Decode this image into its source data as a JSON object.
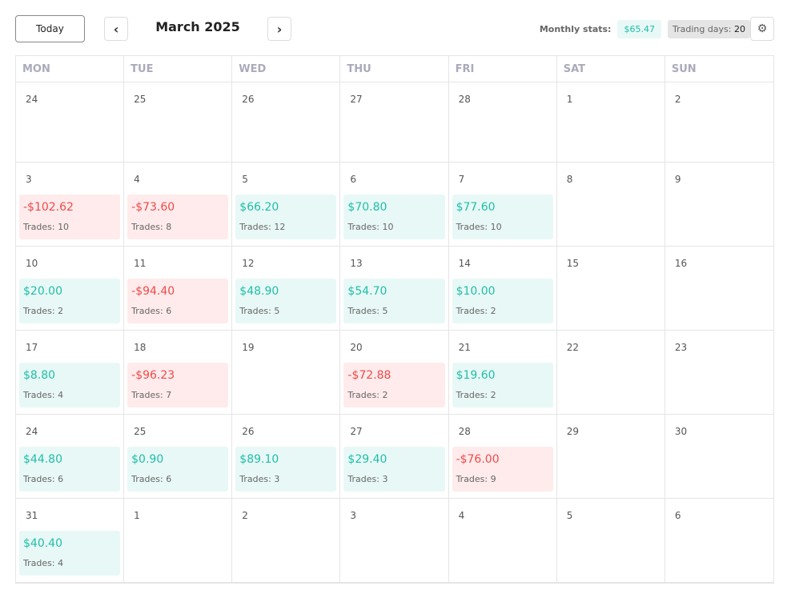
{
  "toolbar": {
    "today_label": "Today",
    "prev_icon": "chevron-left-icon",
    "next_icon": "chevron-right-icon",
    "month_title": "March 2025",
    "stats_label": "Monthly stats:",
    "stats_value": "$65.47",
    "trading_days_label": "Trading days:",
    "trading_days_value": "20",
    "settings_icon": "gear-icon"
  },
  "colors": {
    "positive": "#1fbfa8",
    "positive_bg": "#e8f8f6",
    "negative": "#f04a4a",
    "negative_bg": "#ffebeb"
  },
  "weekdays": [
    "MON",
    "TUE",
    "WED",
    "THU",
    "FRI",
    "SAT",
    "SUN"
  ],
  "trades_label": "Trades:",
  "weeks": [
    [
      {
        "day": "24"
      },
      {
        "day": "25"
      },
      {
        "day": "26"
      },
      {
        "day": "27"
      },
      {
        "day": "28"
      },
      {
        "day": "1"
      },
      {
        "day": "2"
      }
    ],
    [
      {
        "day": "3",
        "pnl": "-$102.62",
        "trades": "10"
      },
      {
        "day": "4",
        "pnl": "-$73.60",
        "trades": "8"
      },
      {
        "day": "5",
        "pnl": "$66.20",
        "trades": "12"
      },
      {
        "day": "6",
        "pnl": "$70.80",
        "trades": "10"
      },
      {
        "day": "7",
        "pnl": "$77.60",
        "trades": "10"
      },
      {
        "day": "8"
      },
      {
        "day": "9"
      }
    ],
    [
      {
        "day": "10",
        "pnl": "$20.00",
        "trades": "2"
      },
      {
        "day": "11",
        "pnl": "-$94.40",
        "trades": "6"
      },
      {
        "day": "12",
        "pnl": "$48.90",
        "trades": "5"
      },
      {
        "day": "13",
        "pnl": "$54.70",
        "trades": "5"
      },
      {
        "day": "14",
        "pnl": "$10.00",
        "trades": "2"
      },
      {
        "day": "15"
      },
      {
        "day": "16"
      }
    ],
    [
      {
        "day": "17",
        "pnl": "$8.80",
        "trades": "4"
      },
      {
        "day": "18",
        "pnl": "-$96.23",
        "trades": "7"
      },
      {
        "day": "19"
      },
      {
        "day": "20",
        "pnl": "-$72.88",
        "trades": "2"
      },
      {
        "day": "21",
        "pnl": "$19.60",
        "trades": "2"
      },
      {
        "day": "22"
      },
      {
        "day": "23"
      }
    ],
    [
      {
        "day": "24",
        "pnl": "$44.80",
        "trades": "6"
      },
      {
        "day": "25",
        "pnl": "$0.90",
        "trades": "6"
      },
      {
        "day": "26",
        "pnl": "$89.10",
        "trades": "3"
      },
      {
        "day": "27",
        "pnl": "$29.40",
        "trades": "3"
      },
      {
        "day": "28",
        "pnl": "-$76.00",
        "trades": "9"
      },
      {
        "day": "29"
      },
      {
        "day": "30"
      }
    ],
    [
      {
        "day": "31",
        "pnl": "$40.40",
        "trades": "4"
      },
      {
        "day": "1"
      },
      {
        "day": "2"
      },
      {
        "day": "3"
      },
      {
        "day": "4"
      },
      {
        "day": "5"
      },
      {
        "day": "6"
      }
    ]
  ]
}
